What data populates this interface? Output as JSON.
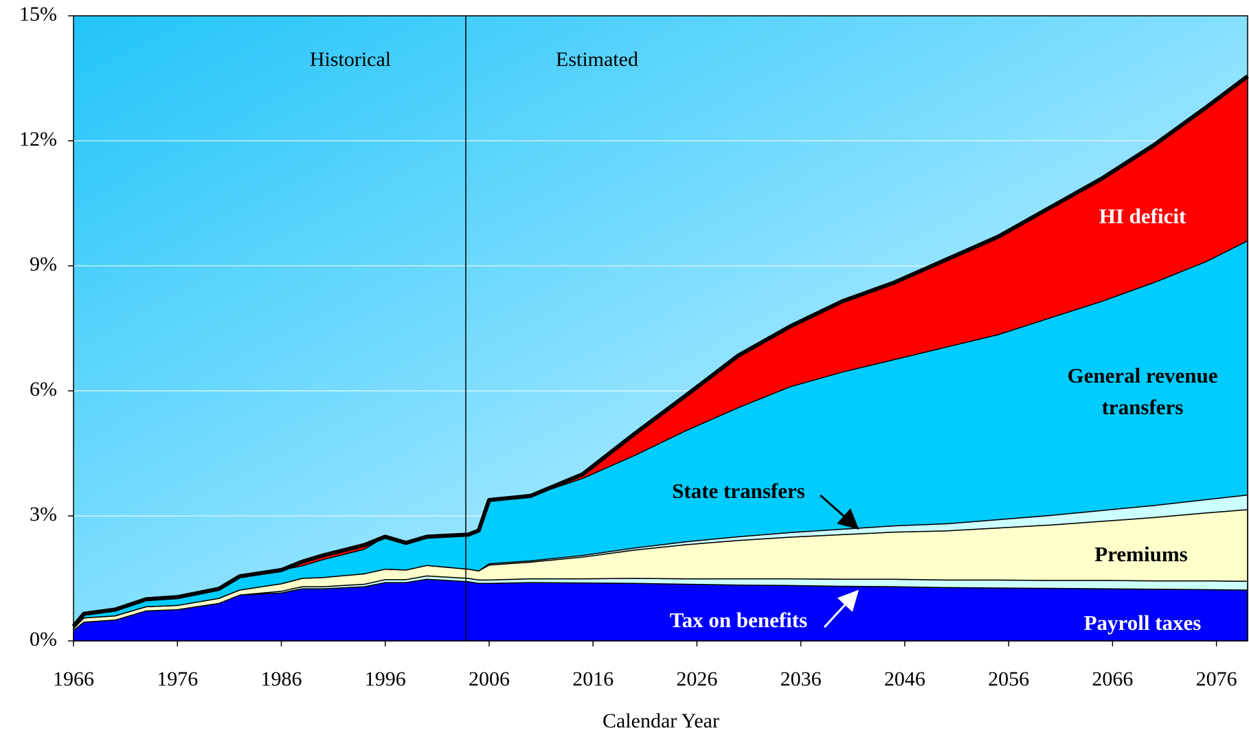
{
  "chart_data": {
    "type": "stacked_area",
    "x_label": "Calendar Year",
    "annotations": [
      "Historical",
      "Estimated"
    ],
    "x": [
      1966,
      1967,
      1970,
      1973,
      1976,
      1980,
      1982,
      1986,
      1988,
      1990,
      1994,
      1996,
      1998,
      2000,
      2004,
      2005,
      2006,
      2010,
      2015,
      2020,
      2025,
      2030,
      2035,
      2040,
      2045,
      2050,
      2055,
      2060,
      2065,
      2070,
      2075,
      2079
    ],
    "xlim": [
      1966,
      2079
    ],
    "xticks": [
      1966,
      1976,
      1986,
      1996,
      2006,
      2016,
      2026,
      2036,
      2046,
      2056,
      2066,
      2076
    ],
    "ylim": [
      0,
      15
    ],
    "yticks": [
      {
        "value": 0,
        "label": "0%"
      },
      {
        "value": 3,
        "label": "3%"
      },
      {
        "value": 6,
        "label": "6%"
      },
      {
        "value": 9,
        "label": "9%"
      },
      {
        "value": 12,
        "label": "12%"
      },
      {
        "value": 15,
        "label": "15%"
      }
    ],
    "grid": true,
    "series": [
      {
        "name": "Payroll taxes",
        "color": "#0000ff",
        "values": [
          0.25,
          0.45,
          0.5,
          0.72,
          0.75,
          0.9,
          1.1,
          1.15,
          1.25,
          1.25,
          1.3,
          1.4,
          1.4,
          1.48,
          1.42,
          1.38,
          1.38,
          1.4,
          1.39,
          1.38,
          1.36,
          1.34,
          1.33,
          1.31,
          1.3,
          1.28,
          1.27,
          1.26,
          1.25,
          1.24,
          1.23,
          1.22
        ]
      },
      {
        "name": "Tax on benefits",
        "color": "#ccffff",
        "values": [
          0,
          0,
          0,
          0,
          0,
          0,
          0,
          0.04,
          0.05,
          0.05,
          0.06,
          0.07,
          0.07,
          0.08,
          0.08,
          0.08,
          0.08,
          0.09,
          0.1,
          0.12,
          0.13,
          0.15,
          0.16,
          0.17,
          0.18,
          0.18,
          0.19,
          0.19,
          0.2,
          0.2,
          0.21,
          0.21
        ]
      },
      {
        "name": "Premiums",
        "color": "#ffffcc",
        "values": [
          0.05,
          0.1,
          0.1,
          0.1,
          0.1,
          0.12,
          0.12,
          0.18,
          0.2,
          0.22,
          0.25,
          0.25,
          0.23,
          0.25,
          0.22,
          0.22,
          0.36,
          0.4,
          0.52,
          0.68,
          0.82,
          0.92,
          1.0,
          1.07,
          1.13,
          1.18,
          1.25,
          1.33,
          1.42,
          1.52,
          1.63,
          1.72
        ]
      },
      {
        "name": "State transfers",
        "color": "#ccffff",
        "values": [
          0,
          0,
          0,
          0,
          0,
          0,
          0,
          0,
          0,
          0,
          0,
          0,
          0,
          0,
          0,
          0,
          0.03,
          0.03,
          0.04,
          0.05,
          0.07,
          0.09,
          0.11,
          0.13,
          0.15,
          0.17,
          0.2,
          0.23,
          0.26,
          0.29,
          0.32,
          0.35
        ]
      },
      {
        "name": "General revenue transfers",
        "color": "#00ccff",
        "values": [
          0.05,
          0.1,
          0.15,
          0.18,
          0.2,
          0.23,
          0.33,
          0.33,
          0.3,
          0.43,
          0.59,
          0.78,
          0.65,
          0.69,
          0.83,
          0.97,
          1.53,
          1.56,
          1.85,
          2.22,
          2.67,
          3.1,
          3.5,
          3.77,
          3.99,
          4.24,
          4.44,
          4.74,
          5.02,
          5.35,
          5.71,
          6.1
        ]
      },
      {
        "name": "HI deficit",
        "color": "#ff0000",
        "values": [
          0,
          0,
          0,
          0,
          0,
          0,
          0,
          0,
          0.1,
          0.1,
          0.1,
          0,
          0,
          0,
          0,
          0,
          0,
          0,
          0.1,
          0.52,
          0.85,
          1.25,
          1.45,
          1.7,
          1.85,
          2.1,
          2.35,
          2.65,
          2.95,
          3.3,
          3.7,
          3.95
        ]
      }
    ]
  }
}
